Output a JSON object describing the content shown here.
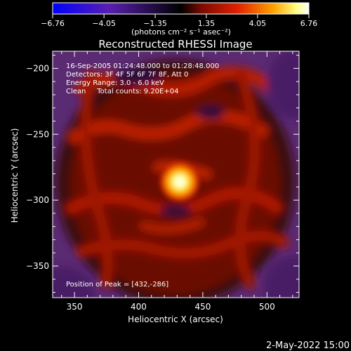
{
  "chart_data": {
    "type": "heatmap",
    "title": "Reconstructed RHESSI Image",
    "xlabel": "Heliocentric X (arcsec)",
    "ylabel": "Heliocentric Y (arcsec)",
    "xlim": [
      333,
      525
    ],
    "ylim": [
      -374,
      -187
    ],
    "xticks": [
      350,
      400,
      450,
      500
    ],
    "xtick_labels": [
      "350",
      "400",
      "450",
      "500"
    ],
    "yticks": [
      -200,
      -250,
      -300,
      -350
    ],
    "ytick_labels": [
      "−200",
      "−250",
      "−300",
      "−350"
    ],
    "colorbar": {
      "ticks": [
        -6.76,
        -4.05,
        -1.35,
        1.35,
        4.05,
        6.76
      ],
      "tick_labels": [
        "−6.76",
        "−4.05",
        "−1.35",
        "1.35",
        "4.05",
        "6.76"
      ],
      "range": [
        -6.76,
        6.76
      ],
      "unit_label": "(photons cm⁻² s⁻¹ asec⁻²)",
      "colors": [
        "#0000ff",
        "#5a1fb0",
        "#000000",
        "#7a0a00",
        "#e02000",
        "#ffa000",
        "#ffff80",
        "#ffffff"
      ]
    },
    "info_lines": [
      "16-Sep-2005 01:24:48.000 to 01:28:48.000",
      "Detectors: 3F 4F 5F 6F 7F 8F, Att 0",
      "Energy Range: 3.0 - 6.0 keV",
      "Clean     Total counts: 9.20E+04"
    ],
    "peak_label": "Position of Peak = [432,-286]",
    "peak": {
      "x": 432,
      "y": -286,
      "value": 6.76
    }
  },
  "footer_date": "2-May-2022 15:00"
}
